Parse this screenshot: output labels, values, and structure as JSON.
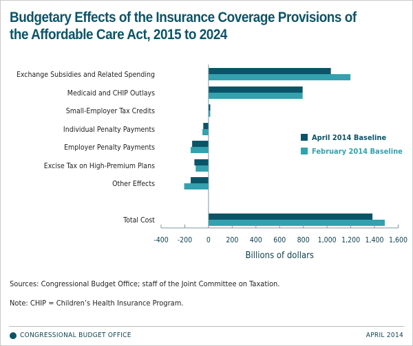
{
  "title": "Budgetary Effects of the Insurance Coverage Provisions of the Affordable Care Act, 2015 to 2024",
  "chart_data": {
    "type": "bar",
    "orientation": "horizontal",
    "categories": [
      "Exchange Subsidies and Related Spending",
      "Medicaid and CHIP Outlays",
      "Small-Employer Tax Credits",
      "Individual Penalty Payments",
      "Employer Penalty Payments",
      "Excise Tax on High-Premium Plans",
      "Other Effects",
      "Total Cost"
    ],
    "series": [
      {
        "name": "April 2014 Baseline",
        "color": "#0b5468",
        "values": [
          1032,
          794,
          15,
          -44,
          -138,
          -119,
          -150,
          1383
        ]
      },
      {
        "name": "February 2014 Baseline",
        "color": "#33a1ae",
        "values": [
          1197,
          794,
          15,
          -51,
          -150,
          -108,
          -205,
          1487
        ]
      }
    ],
    "xlabel": "Billions of dollars",
    "xlim": [
      -400,
      1600
    ],
    "xticks": [
      -400,
      -200,
      0,
      200,
      400,
      600,
      800,
      1000,
      1200,
      1400,
      1600
    ],
    "xtick_labels": [
      "-400",
      "-200",
      "0",
      "200",
      "400",
      "600",
      "800",
      "1,000",
      "1,200",
      "1,400",
      "1,600"
    ],
    "grid": false,
    "legend_position": "right"
  },
  "notes": {
    "sources": "Sources: Congressional Budget Office; staff of the Joint Committee on Taxation.",
    "note": "Note: CHIP = Children’s Health Insurance Program."
  },
  "footer": {
    "org": "CONGRESSIONAL BUDGET OFFICE",
    "date": "APRIL 2014"
  }
}
